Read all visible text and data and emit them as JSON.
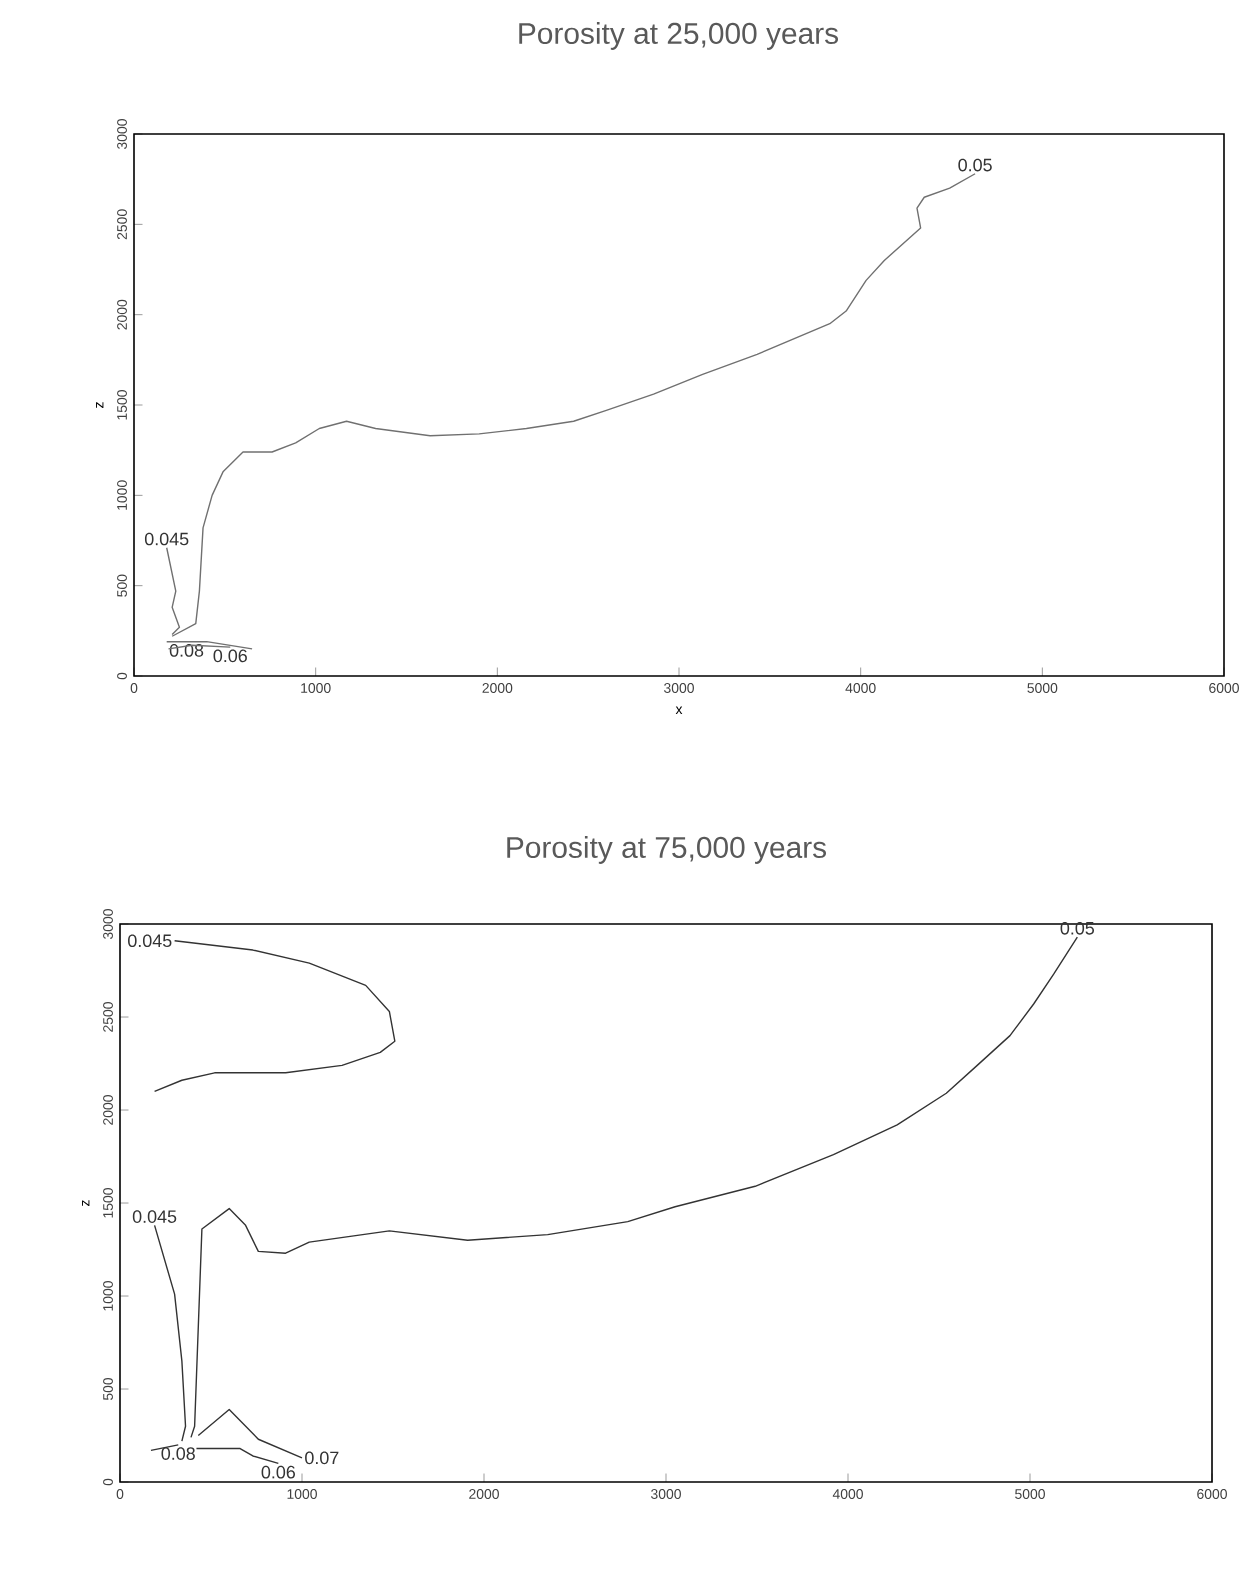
{
  "chart_data": [
    {
      "type": "line",
      "title": "Porosity at 25,000 years",
      "xlabel": "x",
      "ylabel": "z",
      "xlim": [
        0,
        6000
      ],
      "ylim": [
        0,
        3000
      ],
      "xticks": [
        0,
        1000,
        2000,
        3000,
        4000,
        5000,
        6000
      ],
      "yticks": [
        0,
        500,
        1000,
        1500,
        2000,
        2500,
        3000
      ],
      "series": [
        {
          "name": "0.05",
          "color": "#707070",
          "x": [
            210,
            340,
            360,
            380,
            430,
            490,
            600,
            760,
            890,
            1020,
            1170,
            1330,
            1630,
            1900,
            2160,
            2420,
            2600,
            2860,
            3130,
            3430,
            3830,
            3920,
            4030,
            4130,
            4330,
            4310,
            4350,
            4490,
            4630
          ],
          "values": [
            220,
            290,
            470,
            820,
            1000,
            1130,
            1240,
            1240,
            1290,
            1370,
            1410,
            1370,
            1330,
            1340,
            1370,
            1410,
            1470,
            1560,
            1670,
            1780,
            1950,
            2020,
            2190,
            2300,
            2480,
            2590,
            2650,
            2700,
            2780
          ]
        },
        {
          "name": "0.045",
          "color": "#707070",
          "x": [
            180,
            230,
            210,
            250,
            210
          ],
          "values": [
            710,
            470,
            380,
            270,
            230
          ]
        },
        {
          "name": "0.08",
          "color": "#707070",
          "x": [
            180,
            400,
            650
          ],
          "values": [
            190,
            190,
            150
          ]
        },
        {
          "name": "0.06",
          "color": "#707070",
          "x": [
            190,
            320,
            530
          ],
          "values": [
            150,
            170,
            160
          ]
        }
      ]
    },
    {
      "type": "line",
      "title": "Porosity at 75,000 years",
      "ylabel": "z",
      "xlim": [
        0,
        6000
      ],
      "ylim": [
        0,
        3000
      ],
      "xticks": [
        0,
        1000,
        2000,
        3000,
        4000,
        5000,
        6000
      ],
      "yticks": [
        0,
        500,
        1000,
        1500,
        2000,
        2500,
        3000
      ],
      "series": [
        {
          "name": "0.045",
          "color": "#333333",
          "x": [
            300,
            730,
            1040,
            1350,
            1480,
            1510,
            1430,
            1220,
            910,
            520,
            340,
            190
          ],
          "values": [
            2910,
            2860,
            2790,
            2670,
            2530,
            2370,
            2310,
            2240,
            2200,
            2200,
            2160,
            2100
          ]
        },
        {
          "name": "0.045",
          "color": "#333333",
          "x": [
            190,
            300,
            340,
            360,
            340
          ],
          "values": [
            1380,
            1010,
            650,
            300,
            220
          ]
        },
        {
          "name": "0.05",
          "color": "#333333",
          "x": [
            390,
            410,
            450,
            600,
            690,
            760,
            910,
            1040,
            1480,
            1910,
            2350,
            2790,
            3050,
            3490,
            3920,
            4270,
            4540,
            4710,
            4890,
            5020,
            5130,
            5260
          ],
          "values": [
            240,
            300,
            1360,
            1470,
            1380,
            1240,
            1230,
            1290,
            1350,
            1300,
            1330,
            1400,
            1480,
            1590,
            1760,
            1920,
            2090,
            2240,
            2400,
            2570,
            2730,
            2930
          ]
        },
        {
          "name": "0.08",
          "color": "#333333",
          "x": [
            170,
            320
          ],
          "values": [
            170,
            200
          ]
        },
        {
          "name": "0.07",
          "color": "#333333",
          "x": [
            430,
            600,
            760,
            1000
          ],
          "values": [
            250,
            390,
            230,
            130
          ]
        },
        {
          "name": "0.06",
          "color": "#333333",
          "x": [
            420,
            660,
            730,
            870
          ],
          "values": [
            180,
            180,
            140,
            100
          ]
        }
      ]
    }
  ]
}
